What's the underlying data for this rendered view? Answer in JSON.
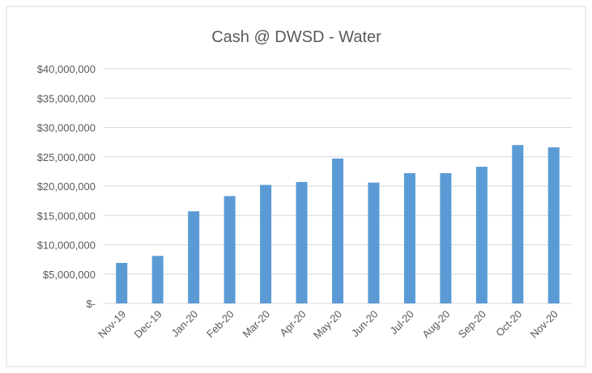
{
  "chart_data": {
    "type": "bar",
    "title": "Cash @ DWSD - Water",
    "categories": [
      "Nov-19",
      "Dec-19",
      "Jan-20",
      "Feb-20",
      "Mar-20",
      "Apr-20",
      "May-20",
      "Jun-20",
      "Jul-20",
      "Aug-20",
      "Sep-20",
      "Oct-20",
      "Nov-20"
    ],
    "values": [
      6900000,
      8100000,
      15700000,
      18300000,
      20200000,
      20700000,
      24700000,
      20600000,
      22200000,
      22200000,
      23300000,
      27000000,
      26600000
    ],
    "color": "#5b9bd5",
    "ylim": [
      0,
      40000000
    ],
    "yticks": [
      {
        "value": 0,
        "label": "$-"
      },
      {
        "value": 5000000,
        "label": "$5,000,000"
      },
      {
        "value": 10000000,
        "label": "$10,000,000"
      },
      {
        "value": 15000000,
        "label": "$15,000,000"
      },
      {
        "value": 20000000,
        "label": "$20,000,000"
      },
      {
        "value": 25000000,
        "label": "$25,000,000"
      },
      {
        "value": 30000000,
        "label": "$30,000,000"
      },
      {
        "value": 35000000,
        "label": "$35,000,000"
      },
      {
        "value": 40000000,
        "label": "$40,000,000"
      }
    ],
    "grid": true
  }
}
